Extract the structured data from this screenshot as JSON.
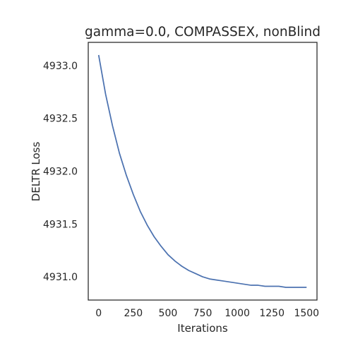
{
  "chart_data": {
    "type": "line",
    "title": "gamma=0.0, COMPASSEX, nonBlind",
    "xlabel": "Iterations",
    "ylabel": "DELTR Loss",
    "xlim": [
      -75,
      1575
    ],
    "ylim": [
      4930.78,
      4933.22
    ],
    "xticks": [
      0,
      250,
      500,
      750,
      1000,
      1250,
      1500
    ],
    "yticks": [
      4931.0,
      4931.5,
      4932.0,
      4932.5,
      4933.0
    ],
    "xtick_labels": [
      "0",
      "250",
      "500",
      "750",
      "1000",
      "1250",
      "1500"
    ],
    "ytick_labels": [
      "4931.0",
      "4931.5",
      "4932.0",
      "4932.5",
      "4933.0"
    ],
    "grid": false,
    "series": [
      {
        "color": "#4c72b0",
        "x": [
          0,
          50,
          100,
          150,
          200,
          250,
          300,
          350,
          400,
          450,
          500,
          550,
          600,
          650,
          700,
          750,
          800,
          850,
          900,
          950,
          1000,
          1050,
          1100,
          1150,
          1200,
          1250,
          1300,
          1350,
          1400,
          1450,
          1500
        ],
        "y": [
          4933.1,
          4932.73,
          4932.43,
          4932.17,
          4931.96,
          4931.78,
          4931.62,
          4931.49,
          4931.38,
          4931.29,
          4931.21,
          4931.15,
          4931.1,
          4931.06,
          4931.03,
          4931.0,
          4930.98,
          4930.97,
          4930.96,
          4930.95,
          4930.94,
          4930.93,
          4930.92,
          4930.92,
          4930.91,
          4930.91,
          4930.91,
          4930.9,
          4930.9,
          4930.9,
          4930.9
        ]
      }
    ]
  }
}
